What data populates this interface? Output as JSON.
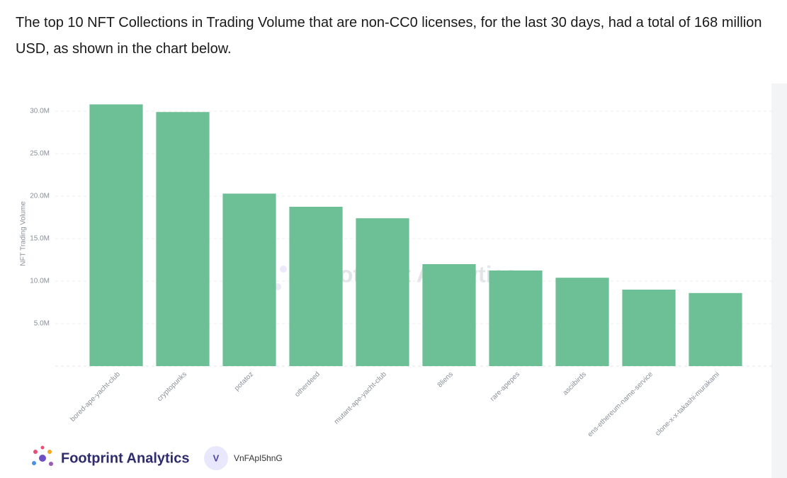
{
  "intro": "The top 10 NFT Collections in Trading Volume that are non-CC0 licenses, for the last 30 days, had a total of 168 million USD, as shown in the chart below.",
  "chart_data": {
    "type": "bar",
    "y_label": "NFT Trading Volume",
    "watermark": "Footprint Analytics",
    "categories": [
      "bored-ape-yacht-club",
      "cryptopunks",
      "potatoz",
      "otherdeed",
      "mutant-ape-yacht-club",
      "8liens",
      "rare-apepes",
      "asciibirds",
      "ens-ethereum-name-service",
      "clone-x-x-takashi-murakami"
    ],
    "values": [
      30800000,
      29900000,
      20300000,
      18750000,
      17400000,
      12000000,
      11250000,
      10400000,
      9000000,
      8600000
    ],
    "color": "#6dbf95",
    "ylim": [
      0,
      32500000
    ],
    "yticks": [
      {
        "value": 5000000,
        "label": "5.0M"
      },
      {
        "value": 10000000,
        "label": "10.0M"
      },
      {
        "value": 15000000,
        "label": "15.0M"
      },
      {
        "value": 20000000,
        "label": "20.0M"
      },
      {
        "value": 25000000,
        "label": "25.0M"
      },
      {
        "value": 30000000,
        "label": "30.0M"
      }
    ],
    "grid": true
  },
  "footer": {
    "brand": "Footprint Analytics",
    "avatar": "V",
    "user": "VnFApI5hnG"
  }
}
